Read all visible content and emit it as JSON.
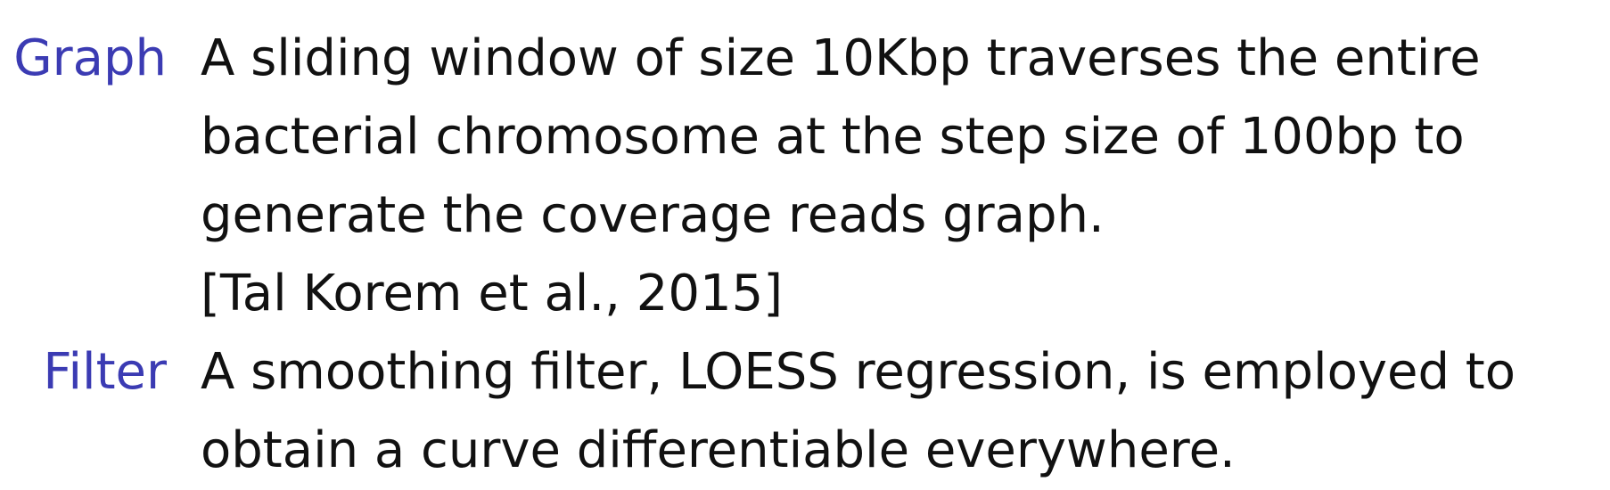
{
  "entries": [
    {
      "term": "Graph",
      "lines": [
        "A sliding window of size 10Kbp traverses the entire",
        "bacterial chromosome at the step size of 100bp to",
        "generate the coverage reads graph.",
        "[Tal Korem et al., 2015]"
      ]
    },
    {
      "term": "Filter",
      "lines": [
        "A smoothing filter, LOESS regression, is employed to",
        "obtain a curve differentiable everywhere."
      ]
    }
  ],
  "colors": {
    "term": "#3b3bb3",
    "text": "#111111",
    "background": "#ffffff"
  }
}
